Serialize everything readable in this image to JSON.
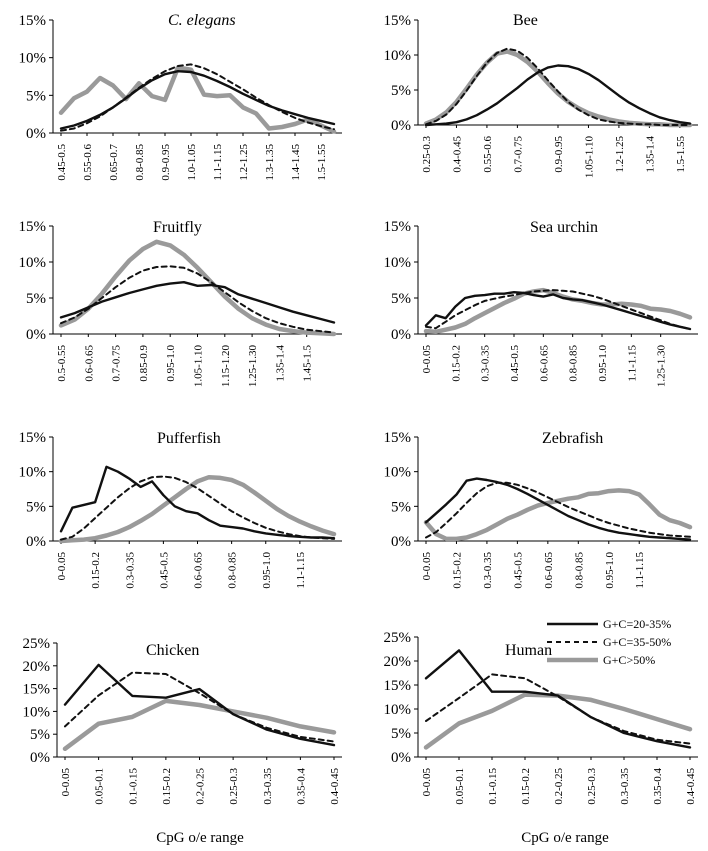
{
  "figure": {
    "xlabel": "CpG o/e range"
  },
  "legend": {
    "entries": [
      {
        "label": "G+C=20-35%",
        "color": "#111111",
        "dash": "solid",
        "width": 2.4
      },
      {
        "label": "G+C=35-50%",
        "color": "#111111",
        "dash": "dashed",
        "width": 2.0
      },
      {
        "label": "G+C>50%",
        "color": "#9a9a9a",
        "dash": "solid",
        "width": 4.5
      }
    ]
  },
  "chart_data": [
    {
      "type": "line",
      "title": "C. elegans",
      "italic": true,
      "ylim": [
        0,
        15
      ],
      "yticks": [
        "0%",
        "5%",
        "10%",
        "15%"
      ],
      "n": 22,
      "xticklabels": [
        "0.45-0.5",
        "0.55-0.6",
        "0.65-0.7",
        "0.8-0.85",
        "0.9-0.95",
        "1.0-1.05",
        "1.1-1.15",
        "1.2-1.25",
        "1.3-1.35",
        "1.4-1.45",
        "1.5-1.55"
      ],
      "xtickindex": [
        0,
        2,
        4,
        6,
        8,
        10,
        12,
        14,
        16,
        18,
        20
      ],
      "series": [
        {
          "values": [
            0.6,
            1.0,
            1.6,
            2.4,
            3.4,
            4.6,
            5.9,
            7.0,
            7.8,
            8.2,
            8.1,
            7.6,
            6.9,
            6.1,
            5.2,
            4.4,
            3.6,
            3.0,
            2.5,
            2.0,
            1.6,
            1.2
          ]
        },
        {
          "values": [
            0.3,
            0.6,
            1.3,
            2.2,
            3.4,
            4.7,
            6.0,
            7.2,
            8.2,
            8.9,
            9.1,
            8.6,
            7.8,
            6.8,
            5.8,
            4.7,
            3.7,
            2.8,
            2.0,
            1.4,
            0.9,
            0.5
          ]
        },
        {
          "values": [
            2.7,
            4.6,
            5.5,
            7.3,
            6.3,
            4.5,
            6.6,
            4.9,
            4.4,
            8.7,
            8.4,
            5.1,
            4.9,
            5.0,
            3.4,
            2.6,
            0.6,
            0.8,
            1.2,
            1.8,
            1.0,
            0.2
          ]
        }
      ]
    },
    {
      "type": "line",
      "title": "Bee",
      "italic": false,
      "ylim": [
        0,
        15
      ],
      "yticks": [
        "0%",
        "5%",
        "10%",
        "15%"
      ],
      "n": 27,
      "xticklabels": [
        "0.25-0.3",
        "0.4-0.45",
        "0.55-0.6",
        "0.7-0.75",
        "0.9-0.95",
        "1.05-1.10",
        "1.2-1.25",
        "1.35-1.4",
        "1.5-1.55"
      ],
      "xtickindex": [
        0,
        3,
        6,
        9,
        13,
        16,
        19,
        22,
        25
      ],
      "series": [
        {
          "values": [
            0.0,
            0.1,
            0.2,
            0.4,
            0.8,
            1.4,
            2.2,
            3.1,
            4.2,
            5.3,
            6.5,
            7.5,
            8.2,
            8.5,
            8.4,
            8.0,
            7.3,
            6.4,
            5.3,
            4.2,
            3.2,
            2.4,
            1.7,
            1.1,
            0.7,
            0.4,
            0.2
          ]
        },
        {
          "values": [
            0.1,
            0.6,
            1.5,
            3.0,
            4.9,
            7.0,
            8.9,
            10.3,
            10.9,
            10.6,
            9.6,
            8.1,
            6.4,
            4.8,
            3.3,
            2.2,
            1.4,
            0.8,
            0.5,
            0.3,
            0.2,
            0.1,
            0.1,
            0.0,
            0.0,
            0.0,
            0.0
          ]
        },
        {
          "values": [
            0.2,
            0.8,
            1.8,
            3.3,
            5.2,
            7.2,
            8.9,
            10.2,
            10.5,
            10.0,
            9.0,
            7.6,
            6.0,
            4.5,
            3.3,
            2.4,
            1.7,
            1.2,
            0.8,
            0.5,
            0.3,
            0.2,
            0.1,
            0.1,
            0.0,
            0.0,
            0.0
          ]
        }
      ]
    },
    {
      "type": "line",
      "title": "Fruitfly",
      "italic": false,
      "ylim": [
        0,
        15
      ],
      "yticks": [
        "0%",
        "5%",
        "10%",
        "15%"
      ],
      "n": 21,
      "xticklabels": [
        "0.5-0.55",
        "0.6-0.65",
        "0.7-0.75",
        "0.85-0.9",
        "0.95-1.0",
        "1.05-1.10",
        "1.15-1.20",
        "1.25-1.30",
        "1.35-1.4",
        "1.45-1.5"
      ],
      "xtickindex": [
        0,
        2,
        4,
        6,
        8,
        10,
        12,
        14,
        16,
        18
      ],
      "series": [
        {
          "values": [
            2.3,
            2.9,
            3.7,
            4.5,
            5.1,
            5.7,
            6.2,
            6.7,
            7.0,
            7.2,
            6.7,
            6.8,
            6.5,
            5.5,
            4.9,
            4.3,
            3.7,
            3.1,
            2.6,
            2.1,
            1.6
          ]
        },
        {
          "values": [
            1.5,
            2.3,
            3.5,
            5.0,
            6.5,
            7.8,
            8.8,
            9.3,
            9.4,
            9.2,
            8.4,
            7.2,
            5.8,
            4.4,
            3.2,
            2.2,
            1.5,
            1.0,
            0.6,
            0.4,
            0.2
          ]
        },
        {
          "values": [
            1.2,
            2.0,
            3.5,
            5.6,
            8.0,
            10.2,
            11.8,
            12.8,
            12.3,
            11.0,
            9.2,
            7.2,
            5.2,
            3.5,
            2.2,
            1.3,
            0.7,
            0.4,
            0.2,
            0.1,
            0.0
          ]
        }
      ]
    },
    {
      "type": "line",
      "title": "Sea urchin",
      "italic": false,
      "ylim": [
        0,
        15
      ],
      "yticks": [
        "0%",
        "5%",
        "10%",
        "15%"
      ],
      "n": 28,
      "xticklabels": [
        "0-0.05",
        "0.15-0.2",
        "0.3-0.35",
        "0.45-0.5",
        "0.6-0.65",
        "0.8-0.85",
        "0.95-1.0",
        "1.1-1.15",
        "1.25-1.30"
      ],
      "xtickindex": [
        0,
        3,
        6,
        9,
        12,
        15,
        18,
        21,
        24
      ],
      "series": [
        {
          "values": [
            1.2,
            2.6,
            2.2,
            3.8,
            5.0,
            5.3,
            5.4,
            5.6,
            5.6,
            5.8,
            5.7,
            5.4,
            5.2,
            5.5,
            5.0,
            4.8,
            4.7,
            4.4,
            4.1,
            3.7,
            3.3,
            2.9,
            2.5,
            2.1,
            1.7,
            1.3,
            1.0,
            0.7
          ]
        },
        {
          "values": [
            1.0,
            0.8,
            1.7,
            2.6,
            3.3,
            4.0,
            4.6,
            4.9,
            5.2,
            5.4,
            5.7,
            5.9,
            6.0,
            6.1,
            6.0,
            5.9,
            5.6,
            5.3,
            4.9,
            4.4,
            3.9,
            3.4,
            2.9,
            2.4,
            1.9,
            1.4,
            1.0,
            0.7
          ]
        },
        {
          "values": [
            0.4,
            0.3,
            0.6,
            0.9,
            1.4,
            2.2,
            2.9,
            3.6,
            4.3,
            4.9,
            5.6,
            5.9,
            6.1,
            5.7,
            5.2,
            4.8,
            4.6,
            4.3,
            4.1,
            4.1,
            4.2,
            4.1,
            3.9,
            3.5,
            3.4,
            3.2,
            2.8,
            2.3
          ]
        }
      ]
    },
    {
      "type": "line",
      "title": "Pufferfish",
      "italic": false,
      "ylim": [
        0,
        15
      ],
      "yticks": [
        "0%",
        "5%",
        "10%",
        "15%"
      ],
      "n": 25,
      "xticklabels": [
        "0-0.05",
        "0.15-0.2",
        "0.3-0.35",
        "0.45-0.5",
        "0.6-0.65",
        "0.8-0.85",
        "0.95-1.0",
        "1.1-1.15"
      ],
      "xtickindex": [
        0,
        3,
        6,
        9,
        12,
        15,
        18,
        21
      ],
      "series": [
        {
          "values": [
            1.4,
            4.8,
            5.2,
            5.6,
            10.7,
            10.0,
            9.0,
            7.8,
            8.6,
            6.6,
            5.0,
            4.3,
            4.0,
            3.0,
            2.2,
            2.0,
            1.8,
            1.4,
            1.1,
            0.9,
            0.7,
            0.6,
            0.5,
            0.5,
            0.4
          ]
        },
        {
          "values": [
            0.2,
            0.6,
            1.8,
            3.3,
            4.8,
            6.3,
            7.6,
            8.6,
            9.2,
            9.3,
            9.1,
            8.5,
            7.6,
            6.5,
            5.4,
            4.3,
            3.4,
            2.6,
            1.9,
            1.4,
            1.0,
            0.7,
            0.5,
            0.4,
            0.3
          ]
        },
        {
          "values": [
            0.0,
            0.1,
            0.2,
            0.4,
            0.8,
            1.3,
            2.0,
            2.9,
            3.9,
            5.1,
            6.3,
            7.5,
            8.6,
            9.2,
            9.1,
            8.8,
            8.1,
            7.0,
            5.8,
            4.6,
            3.6,
            2.8,
            2.1,
            1.5,
            1.0
          ]
        }
      ]
    },
    {
      "type": "line",
      "title": "Zebrafish",
      "italic": false,
      "ylim": [
        0,
        15
      ],
      "yticks": [
        "0%",
        "5%",
        "10%",
        "15%"
      ],
      "n": 27,
      "xticklabels": [
        "0-0.05",
        "0.15-0.2",
        "0.3-0.35",
        "0.45-0.5",
        "0.6-0.65",
        "0.8-0.85",
        "0.95-1.0",
        "1.1-1.15"
      ],
      "xtickindex": [
        0,
        3,
        6,
        9,
        12,
        15,
        18,
        21
      ],
      "series": [
        {
          "values": [
            2.7,
            4.0,
            5.3,
            6.7,
            8.7,
            9.0,
            8.8,
            8.5,
            8.1,
            7.5,
            6.8,
            6.0,
            5.2,
            4.4,
            3.6,
            3.0,
            2.4,
            1.9,
            1.5,
            1.2,
            1.0,
            0.8,
            0.6,
            0.5,
            0.4,
            0.3,
            0.2
          ]
        },
        {
          "values": [
            0.5,
            1.3,
            2.6,
            4.0,
            5.5,
            6.9,
            7.9,
            8.4,
            8.4,
            8.1,
            7.6,
            7.0,
            6.3,
            5.6,
            4.9,
            4.3,
            3.7,
            3.1,
            2.6,
            2.2,
            1.8,
            1.5,
            1.2,
            1.0,
            0.8,
            0.7,
            0.6
          ]
        },
        {
          "values": [
            2.7,
            1.0,
            0.3,
            0.3,
            0.5,
            1.0,
            1.6,
            2.4,
            3.2,
            3.8,
            4.5,
            5.1,
            5.5,
            5.8,
            6.1,
            6.3,
            6.8,
            6.9,
            7.2,
            7.3,
            7.2,
            6.7,
            5.3,
            3.8,
            3.0,
            2.6,
            2.0
          ]
        }
      ]
    },
    {
      "type": "line",
      "title": "Chicken",
      "italic": false,
      "ylim": [
        0,
        25
      ],
      "yticks": [
        "0%",
        "5%",
        "10%",
        "15%",
        "20%",
        "25%"
      ],
      "n": 9,
      "xticklabels": [
        "0-0.05",
        "0.05-0.1",
        "0.1-0.15",
        "0.15-0.2",
        "0.2-0.25",
        "0.25-0.3",
        "0.3-0.35",
        "0.35-0.4",
        "0.4-0.45"
      ],
      "xtickindex": [
        0,
        1,
        2,
        3,
        4,
        5,
        6,
        7,
        8
      ],
      "series": [
        {
          "values": [
            11.5,
            20.2,
            13.4,
            13.0,
            14.9,
            9.4,
            6.0,
            4.0,
            2.6
          ]
        },
        {
          "values": [
            6.7,
            13.5,
            18.5,
            18.2,
            14.0,
            9.4,
            6.4,
            4.4,
            3.4
          ]
        },
        {
          "values": [
            1.8,
            7.3,
            8.8,
            12.3,
            11.4,
            10.0,
            8.6,
            6.7,
            5.4
          ]
        }
      ]
    },
    {
      "type": "line",
      "title": "Human",
      "italic": false,
      "ylim": [
        0,
        25
      ],
      "yticks": [
        "0%",
        "5%",
        "10%",
        "15%",
        "20%",
        "25%"
      ],
      "n": 9,
      "xticklabels": [
        "0-0.05",
        "0.05-0.1",
        "0.1-0.15",
        "0.15-0.2",
        "0.2-0.25",
        "0.25-0.3",
        "0.3-0.35",
        "0.35-0.4",
        "0.4-0.45"
      ],
      "xtickindex": [
        0,
        1,
        2,
        3,
        4,
        5,
        6,
        7,
        8
      ],
      "series": [
        {
          "values": [
            16.4,
            22.2,
            13.6,
            13.6,
            12.8,
            8.3,
            5.0,
            3.3,
            2.0
          ]
        },
        {
          "values": [
            7.5,
            12.3,
            17.2,
            16.4,
            12.6,
            8.3,
            5.4,
            3.6,
            2.8
          ]
        },
        {
          "values": [
            2.0,
            7.0,
            9.6,
            13.0,
            12.8,
            11.9,
            10.0,
            7.9,
            5.8
          ]
        }
      ]
    }
  ]
}
